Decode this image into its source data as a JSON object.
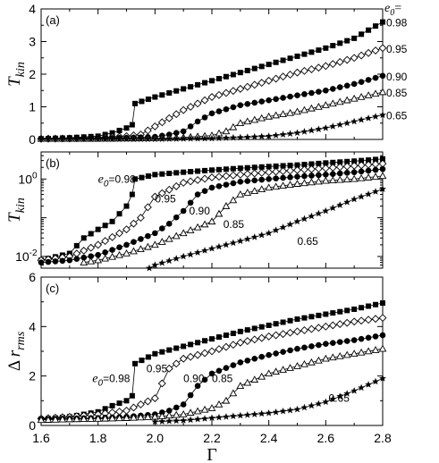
{
  "chart_data": [
    {
      "panel": "(a)",
      "type": "line",
      "ylabel": "T_kin",
      "yscale": "linear",
      "ylim": [
        0,
        4
      ],
      "yticks": [
        "0",
        "1",
        "2",
        "3",
        "4"
      ],
      "legend_header": "e0=",
      "series": [
        {
          "name": "0.98",
          "marker": "filled-square",
          "x": [
            1.6,
            1.7,
            1.8,
            1.85,
            1.9,
            1.92,
            1.93,
            2.0,
            2.1,
            2.2,
            2.3,
            2.4,
            2.5,
            2.6,
            2.7,
            2.8
          ],
          "y": [
            0.02,
            0.05,
            0.1,
            0.2,
            0.35,
            0.45,
            1.1,
            1.3,
            1.55,
            1.8,
            2.05,
            2.3,
            2.55,
            2.8,
            3.1,
            3.6
          ]
        },
        {
          "name": "0.95",
          "marker": "open-diamond",
          "x": [
            1.6,
            1.7,
            1.8,
            1.9,
            1.95,
            2.0,
            2.1,
            2.15,
            2.2,
            2.3,
            2.4,
            2.5,
            2.6,
            2.7,
            2.8
          ],
          "y": [
            0.02,
            0.03,
            0.05,
            0.1,
            0.15,
            0.4,
            0.9,
            1.1,
            1.3,
            1.55,
            1.8,
            2.05,
            2.25,
            2.5,
            2.8
          ]
        },
        {
          "name": "0.90",
          "marker": "filled-circle",
          "x": [
            1.6,
            1.7,
            1.8,
            1.9,
            2.0,
            2.05,
            2.1,
            2.15,
            2.2,
            2.3,
            2.4,
            2.5,
            2.6,
            2.7,
            2.8
          ],
          "y": [
            0.02,
            0.02,
            0.03,
            0.05,
            0.08,
            0.15,
            0.25,
            0.55,
            0.8,
            1.05,
            1.2,
            1.35,
            1.5,
            1.7,
            1.95
          ]
        },
        {
          "name": "0.85",
          "marker": "open-triangle",
          "x": [
            1.6,
            1.7,
            1.8,
            1.9,
            2.0,
            2.1,
            2.2,
            2.25,
            2.3,
            2.4,
            2.5,
            2.6,
            2.7,
            2.8
          ],
          "y": [
            0.02,
            0.02,
            0.02,
            0.03,
            0.04,
            0.06,
            0.12,
            0.25,
            0.5,
            0.7,
            0.85,
            1.05,
            1.25,
            1.45
          ]
        },
        {
          "name": "0.65",
          "marker": "star",
          "x": [
            1.6,
            1.7,
            1.8,
            1.9,
            2.0,
            2.1,
            2.2,
            2.3,
            2.4,
            2.5,
            2.6,
            2.7,
            2.8
          ],
          "y": [
            0.01,
            0.01,
            0.01,
            0.01,
            0.01,
            0.02,
            0.03,
            0.06,
            0.1,
            0.2,
            0.35,
            0.55,
            0.75
          ]
        }
      ]
    },
    {
      "panel": "(b)",
      "type": "line",
      "ylabel": "T_kin",
      "yscale": "log",
      "ylim": [
        0.005,
        5
      ],
      "ytick_labels": [
        {
          "base": "10",
          "exp": "0"
        },
        {
          "base": "10",
          "exp": "-2"
        }
      ],
      "series_labels": [
        {
          "text_prefix": "e0",
          "text": "=0.98",
          "x": 1.8,
          "y": 0.8
        },
        {
          "text": "0.95",
          "x": 2.0,
          "y": 0.25
        },
        {
          "text": "0.90",
          "x": 2.12,
          "y": 0.12
        },
        {
          "text": "0.85",
          "x": 2.24,
          "y": 0.055
        },
        {
          "text": "0.65",
          "x": 2.5,
          "y": 0.02
        }
      ],
      "series": [
        {
          "name": "0.98",
          "marker": "filled-square",
          "x": [
            1.6,
            1.7,
            1.75,
            1.8,
            1.85,
            1.9,
            1.92,
            1.93,
            2.0,
            2.1,
            2.2,
            2.3,
            2.4,
            2.5,
            2.6,
            2.7,
            2.8
          ],
          "y": [
            0.008,
            0.012,
            0.03,
            0.05,
            0.08,
            0.2,
            0.4,
            1.0,
            1.3,
            1.5,
            1.7,
            1.9,
            2.1,
            2.3,
            2.6,
            2.9,
            3.3
          ]
        },
        {
          "name": "0.95",
          "marker": "open-diamond",
          "x": [
            1.6,
            1.7,
            1.8,
            1.9,
            1.95,
            2.0,
            2.1,
            2.2,
            2.3,
            2.4,
            2.5,
            2.6,
            2.7,
            2.8
          ],
          "y": [
            0.008,
            0.01,
            0.02,
            0.05,
            0.1,
            0.35,
            0.8,
            1.1,
            1.3,
            1.5,
            1.7,
            1.9,
            2.2,
            2.5
          ]
        },
        {
          "name": "0.90",
          "marker": "filled-circle",
          "x": [
            1.6,
            1.7,
            1.8,
            1.9,
            2.0,
            2.05,
            2.1,
            2.15,
            2.2,
            2.3,
            2.4,
            2.5,
            2.6,
            2.7,
            2.8
          ],
          "y": [
            0.007,
            0.008,
            0.011,
            0.02,
            0.04,
            0.07,
            0.15,
            0.4,
            0.6,
            0.85,
            1.0,
            1.15,
            1.3,
            1.5,
            1.8
          ]
        },
        {
          "name": "0.85",
          "marker": "open-triangle",
          "x": [
            1.75,
            1.8,
            1.9,
            2.0,
            2.1,
            2.2,
            2.25,
            2.3,
            2.4,
            2.5,
            2.6,
            2.7,
            2.8
          ],
          "y": [
            0.007,
            0.008,
            0.012,
            0.02,
            0.04,
            0.08,
            0.2,
            0.4,
            0.6,
            0.75,
            0.9,
            1.0,
            1.2
          ]
        },
        {
          "name": "0.65",
          "marker": "star",
          "x": [
            1.98,
            2.0,
            2.1,
            2.2,
            2.3,
            2.4,
            2.5,
            2.6,
            2.7,
            2.8
          ],
          "y": [
            0.005,
            0.006,
            0.01,
            0.016,
            0.025,
            0.04,
            0.08,
            0.15,
            0.3,
            0.55
          ]
        }
      ]
    },
    {
      "panel": "(c)",
      "type": "line",
      "ylabel": "Δ r_rms",
      "yscale": "linear",
      "ylim": [
        0,
        6
      ],
      "yticks": [
        "0",
        "2",
        "4",
        "6"
      ],
      "xlabel": "Γ",
      "xlim": [
        1.6,
        2.8
      ],
      "xticks": [
        "1.6",
        "1.8",
        "2.0",
        "2.2",
        "2.4",
        "2.6",
        "2.8"
      ],
      "series_labels": [
        {
          "text_prefix": "e0",
          "text": "=0.98",
          "x": 1.78,
          "y": 1.75
        },
        {
          "text": "0.95",
          "x": 1.97,
          "y": 2.15
        },
        {
          "text": "0.90",
          "x": 2.1,
          "y": 1.75
        },
        {
          "text": "0.85",
          "x": 2.2,
          "y": 1.75
        },
        {
          "text": "0.65",
          "x": 2.61,
          "y": 0.95
        }
      ],
      "series": [
        {
          "name": "0.98",
          "marker": "filled-square",
          "x": [
            1.6,
            1.7,
            1.8,
            1.85,
            1.9,
            1.92,
            1.93,
            2.0,
            2.1,
            2.2,
            2.3,
            2.4,
            2.5,
            2.6,
            2.7,
            2.8
          ],
          "y": [
            0.25,
            0.35,
            0.55,
            0.8,
            1.0,
            1.2,
            2.5,
            2.9,
            3.2,
            3.5,
            3.8,
            4.05,
            4.3,
            4.5,
            4.7,
            4.95
          ]
        },
        {
          "name": "0.95",
          "marker": "open-diamond",
          "x": [
            1.6,
            1.7,
            1.8,
            1.9,
            1.95,
            2.0,
            2.05,
            2.1,
            2.2,
            2.3,
            2.4,
            2.5,
            2.6,
            2.7,
            2.8
          ],
          "y": [
            0.28,
            0.35,
            0.45,
            0.6,
            0.85,
            1.1,
            2.3,
            2.7,
            3.0,
            3.35,
            3.6,
            3.8,
            4.0,
            4.2,
            4.35
          ]
        },
        {
          "name": "0.90",
          "marker": "filled-circle",
          "x": [
            1.6,
            1.7,
            1.8,
            1.9,
            2.0,
            2.05,
            2.1,
            2.15,
            2.2,
            2.3,
            2.4,
            2.5,
            2.6,
            2.7,
            2.8
          ],
          "y": [
            0.25,
            0.28,
            0.3,
            0.35,
            0.45,
            0.6,
            0.85,
            1.6,
            2.1,
            2.55,
            2.85,
            3.1,
            3.3,
            3.45,
            3.65
          ]
        },
        {
          "name": "0.85",
          "marker": "open-triangle",
          "x": [
            1.6,
            1.7,
            1.8,
            1.9,
            2.0,
            2.1,
            2.2,
            2.25,
            2.3,
            2.4,
            2.5,
            2.6,
            2.7,
            2.8
          ],
          "y": [
            0.22,
            0.25,
            0.27,
            0.3,
            0.35,
            0.45,
            0.7,
            1.0,
            1.6,
            2.1,
            2.4,
            2.7,
            2.9,
            3.1
          ]
        },
        {
          "name": "0.65",
          "marker": "star",
          "x": [
            2.0,
            2.1,
            2.2,
            2.3,
            2.4,
            2.5,
            2.6,
            2.7,
            2.8
          ],
          "y": [
            0.15,
            0.2,
            0.3,
            0.4,
            0.5,
            0.65,
            0.95,
            1.4,
            1.9
          ]
        }
      ]
    }
  ]
}
